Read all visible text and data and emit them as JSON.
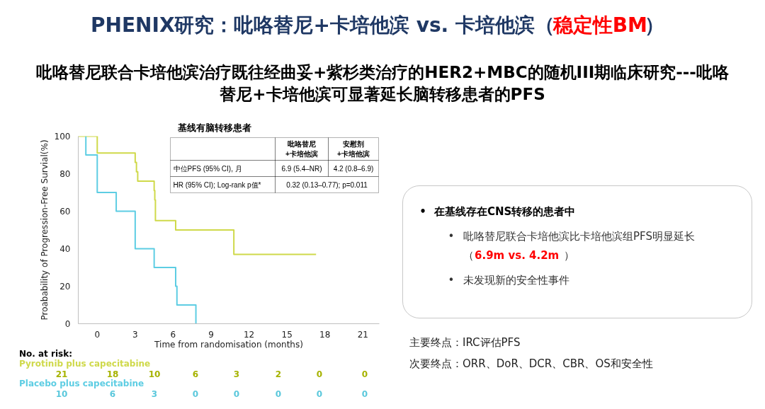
{
  "chart_data": {
    "type": "step",
    "subtitle": "吡咯替尼联合卡培他滨治疗既往经曲妥+紫杉类治疗的HER2+MBC的随机III期临床研究---吡咯替尼+卡培他滨可显著延长脑转移患者的PFS",
    "xlabel": "Time from randomisation (months)",
    "ylabel": "Proabability of Progression-Free Survial(%)",
    "xlim": [
      -1.5,
      22.3
    ],
    "xticks": [
      0,
      3,
      6,
      9,
      12,
      15,
      18,
      21
    ],
    "ylim": [
      0,
      100
    ],
    "yticks": [
      0,
      20,
      40,
      60,
      80,
      100
    ],
    "grid": false,
    "marker": "none",
    "line_style": "solid",
    "series": [
      {
        "name": "Pyrotinib plus capecitabine",
        "color": "#cfd94a",
        "x": [
          -1.5,
          0,
          3.0,
          3.1,
          3.2,
          4.5,
          4.55,
          4.6,
          6.2,
          10.8,
          17.3
        ],
        "values": [
          100,
          91,
          86,
          81,
          76,
          71,
          66,
          55,
          50,
          37,
          37
        ]
      },
      {
        "name": "Placebo plus capecitabine",
        "color": "#5dcde3",
        "x": [
          -0.9,
          -0.9,
          0,
          1.5,
          3.0,
          4.5,
          6.2,
          6.3,
          7.8
        ],
        "values": [
          100,
          90,
          70,
          60,
          40,
          30,
          20,
          10,
          0
        ]
      }
    ],
    "annotations": [
      "PHENIX研究：吡咯替尼+卡培他滨 vs. 卡培他滨（",
      "稳定性BM",
      "）",
      "基线有脑转移患者",
      "吡咯替尼\n+卡培他滨",
      "安慰剂\n+卡培他滨",
      "中位PFS (95% CI), 月",
      "6.9 (5.4–NR)",
      "4.2 (0.8–6.9)",
      "HR (95% CI); Log-rank p值*",
      "0.32 (0.13–0.77); p=0.011",
      "•",
      "在基线存在CNS转移的患者中",
      "•",
      "吡咯替尼联合卡培他滨比卡培他滨组PFS明显延长",
      "（",
      "6.9m vs. 4.2m",
      "）",
      "•",
      "未发现新的安全性事件",
      "主要终点：IRC评估PFS",
      "次要终点：ORR、DoR、DCR、CBR、OS和安全性",
      "No. at risk:",
      "21",
      "18",
      "10",
      "6",
      "3",
      "2",
      "0",
      "0",
      "10",
      "6",
      "3",
      "0",
      "0",
      "0",
      "0",
      "0"
    ]
  }
}
